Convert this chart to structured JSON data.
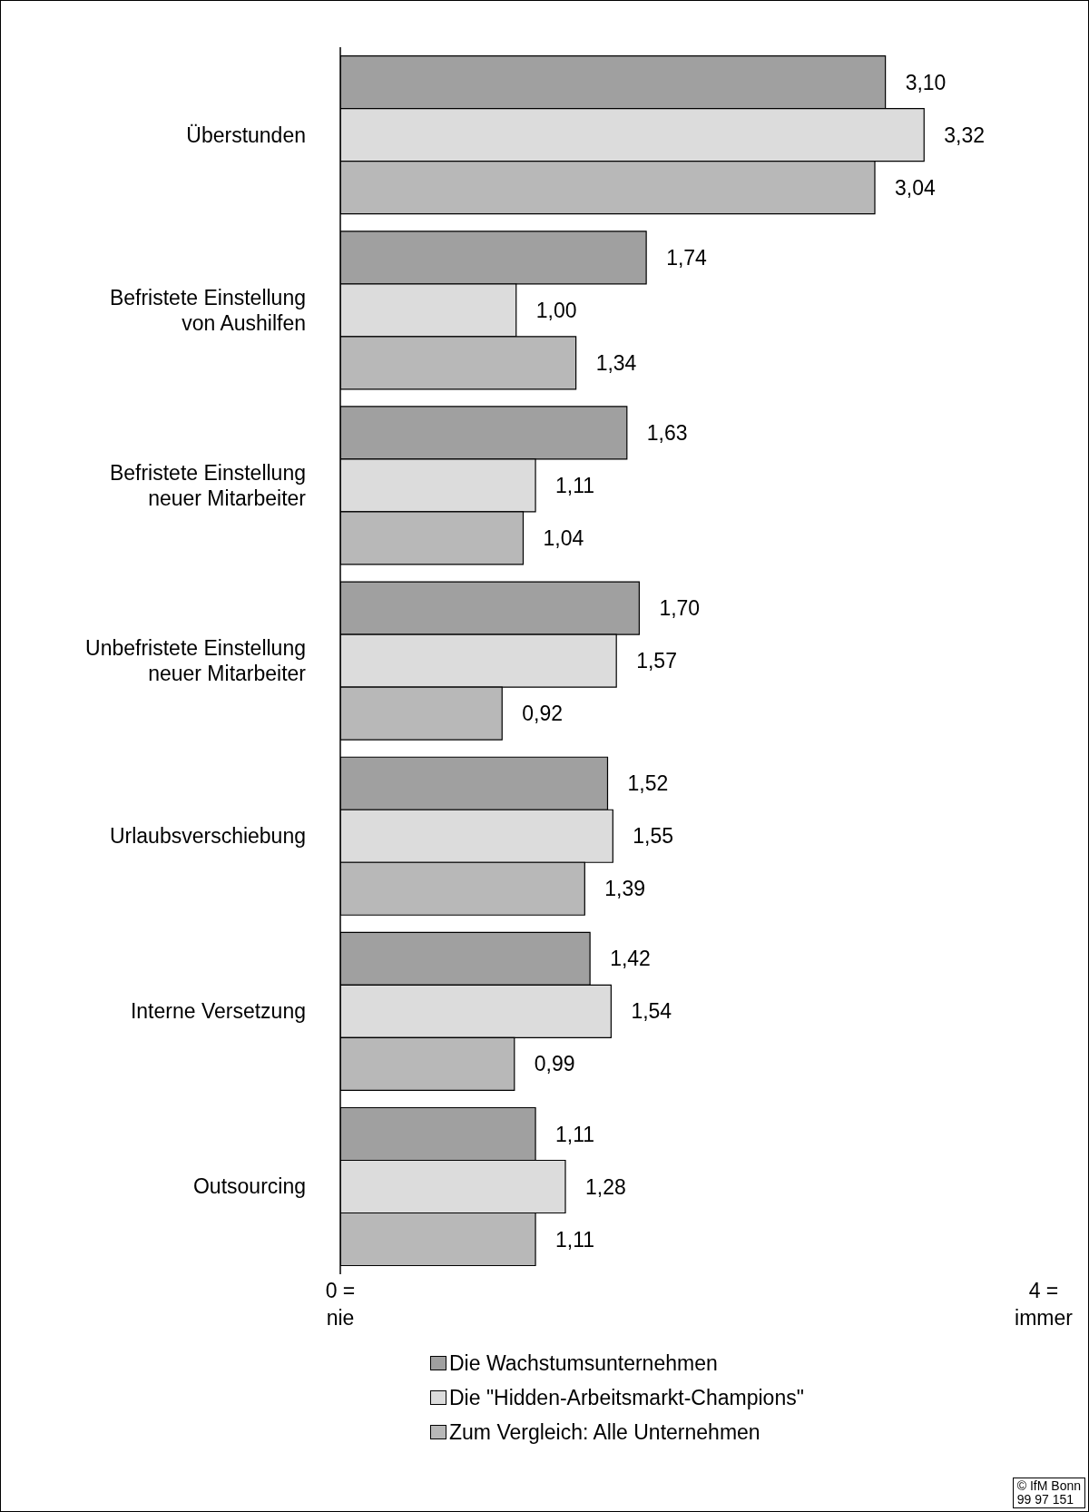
{
  "chart_data": {
    "type": "bar",
    "orientation": "horizontal",
    "categories": [
      "Überstunden",
      "Befristete Einstellung von Aushilfen",
      "Befristete Einstellung neuer Mitarbeiter",
      "Unbefristete Einstellung neuer Mitarbeiter",
      "Urlaubsverschiebung",
      "Interne Versetzung",
      "Outsourcing"
    ],
    "series": [
      {
        "name": "Die Wachstumsunternehmen",
        "color": "#a0a0a0",
        "values": [
          3.1,
          1.74,
          1.63,
          1.7,
          1.52,
          1.42,
          1.11
        ],
        "value_labels": [
          "3,10",
          "1,74",
          "1,63",
          "1,70",
          "1,52",
          "1,42",
          "1,11"
        ]
      },
      {
        "name": "Die \"Hidden-Arbeitsmarkt-Champions\"",
        "color": "#dcdcdc",
        "values": [
          3.32,
          1.0,
          1.11,
          1.57,
          1.55,
          1.54,
          1.28
        ],
        "value_labels": [
          "3,32",
          "1,00",
          "1,11",
          "1,57",
          "1,55",
          "1,54",
          "1,28"
        ]
      },
      {
        "name": "Zum Vergleich: Alle Unternehmen",
        "color": "#b8b8b8",
        "values": [
          3.04,
          1.34,
          1.04,
          0.92,
          1.39,
          0.99,
          1.11
        ],
        "value_labels": [
          "3,04",
          "1,34",
          "1,04",
          "0,92",
          "1,39",
          "0,99",
          "1,11"
        ]
      }
    ],
    "xlim": [
      0,
      4
    ],
    "xticks": [
      {
        "value": 0,
        "label": "0 = nie"
      },
      {
        "value": 4,
        "label": "4 = immer"
      }
    ],
    "grid": false,
    "legend": "bottom",
    "annotations": [
      "© IfM Bonn 99 97 151"
    ]
  }
}
